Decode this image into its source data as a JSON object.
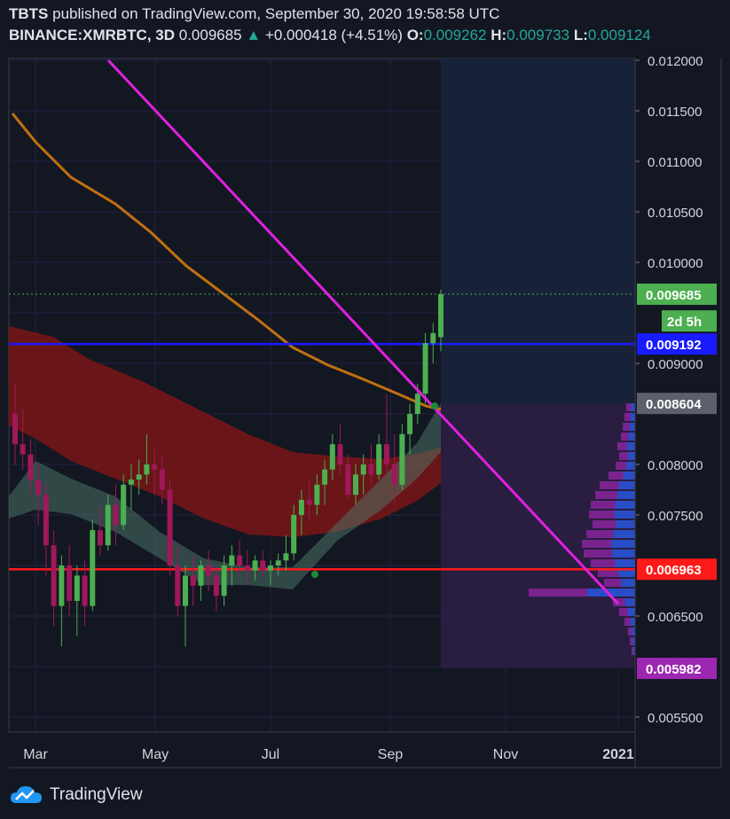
{
  "header": {
    "author": "TBTS",
    "published_text": "published on TradingView.com, September 30, 2020 19:58:58 UTC",
    "symbol": "BINANCE:XMRBTC, 3D",
    "last": "0.009685",
    "change_arrow": "▲",
    "change": "+0.000418 (+4.51%)",
    "o_label": "O:",
    "o_value": "0.009262",
    "h_label": "H:",
    "h_value": "0.009733",
    "l_label": "L:",
    "l_value": "0.009124"
  },
  "footer": {
    "brand": "TradingView",
    "logo_icon": "tradingview-cloud-icon"
  },
  "colors": {
    "background": "#131722",
    "grid": "#2a1f45",
    "up": "#4caf50",
    "down": "#a0185a",
    "trendline": "#e020e0",
    "support": "#ff1a1a",
    "resistance": "#1a1aff",
    "ma": "#c07010"
  },
  "chart_data": {
    "type": "candlestick",
    "x_ticks": [
      "Mar",
      "May",
      "Jul",
      "Sep",
      "Nov",
      "2021"
    ],
    "y_ticks": [
      "0.012000",
      "0.011500",
      "0.011000",
      "0.010500",
      "0.010000",
      "0.009000",
      "0.008000",
      "0.007500",
      "0.006500",
      "0.005500"
    ],
    "ylim": [
      0.0055,
      0.012
    ],
    "price_labels": [
      {
        "value": "0.009685",
        "price": 0.009685,
        "color": "#4caf50"
      },
      {
        "value": "2d 5h",
        "price": 0.00942,
        "color": "#4caf50"
      },
      {
        "value": "0.009192",
        "price": 0.009192,
        "color": "#1a1aff"
      },
      {
        "value": "0.008604",
        "price": 0.008604,
        "color": "#5d606b"
      },
      {
        "value": "0.006963",
        "price": 0.006963,
        "color": "#ff1a1a"
      },
      {
        "value": "0.005982",
        "price": 0.005982,
        "color": "#9c27b0"
      }
    ],
    "horizontal_lines": [
      {
        "name": "resistance",
        "price": 0.009192,
        "color": "#1a1aff"
      },
      {
        "name": "support",
        "price": 0.006963,
        "color": "#ff1a1a"
      }
    ],
    "trendline": {
      "start": [
        0,
        0.012
      ],
      "end": [
        60,
        0.00662
      ]
    },
    "candles": [
      [
        0.0085,
        0.0088,
        0.008,
        0.0082
      ],
      [
        0.0082,
        0.00855,
        0.00795,
        0.0081
      ],
      [
        0.0081,
        0.00825,
        0.0077,
        0.00785
      ],
      [
        0.00785,
        0.008,
        0.0074,
        0.0077
      ],
      [
        0.0077,
        0.0078,
        0.0069,
        0.0072
      ],
      [
        0.0072,
        0.00735,
        0.0064,
        0.0066
      ],
      [
        0.0066,
        0.0071,
        0.0062,
        0.007
      ],
      [
        0.007,
        0.0072,
        0.0065,
        0.00665
      ],
      [
        0.00665,
        0.007,
        0.0063,
        0.0069
      ],
      [
        0.0069,
        0.00705,
        0.0064,
        0.0066
      ],
      [
        0.0066,
        0.00745,
        0.00655,
        0.00735
      ],
      [
        0.00735,
        0.0076,
        0.0071,
        0.0072
      ],
      [
        0.0072,
        0.0077,
        0.00715,
        0.0076
      ],
      [
        0.0076,
        0.0078,
        0.0072,
        0.0074
      ],
      [
        0.0074,
        0.0079,
        0.00735,
        0.0078
      ],
      [
        0.0078,
        0.008,
        0.00755,
        0.00785
      ],
      [
        0.00785,
        0.00805,
        0.0077,
        0.0079
      ],
      [
        0.0079,
        0.0083,
        0.0078,
        0.008
      ],
      [
        0.008,
        0.00815,
        0.0077,
        0.00795
      ],
      [
        0.00795,
        0.0081,
        0.0076,
        0.00775
      ],
      [
        0.00775,
        0.00785,
        0.0069,
        0.007
      ],
      [
        0.007,
        0.0072,
        0.0065,
        0.0066
      ],
      [
        0.0066,
        0.007,
        0.0062,
        0.0069
      ],
      [
        0.0069,
        0.0071,
        0.0066,
        0.0068
      ],
      [
        0.0068,
        0.00705,
        0.00665,
        0.007
      ],
      [
        0.007,
        0.00715,
        0.00675,
        0.0069
      ],
      [
        0.0069,
        0.007,
        0.00655,
        0.0067
      ],
      [
        0.0067,
        0.0071,
        0.0066,
        0.007
      ],
      [
        0.007,
        0.0072,
        0.0068,
        0.0071
      ],
      [
        0.0071,
        0.00725,
        0.0069,
        0.007
      ],
      [
        0.007,
        0.00715,
        0.0068,
        0.00695
      ],
      [
        0.00695,
        0.0071,
        0.00685,
        0.00705
      ],
      [
        0.00705,
        0.00715,
        0.0069,
        0.00695
      ],
      [
        0.00695,
        0.00705,
        0.0068,
        0.007
      ],
      [
        0.007,
        0.00712,
        0.0069,
        0.00705
      ],
      [
        0.00705,
        0.0073,
        0.00695,
        0.00712
      ],
      [
        0.00712,
        0.0076,
        0.00705,
        0.0075
      ],
      [
        0.0075,
        0.00775,
        0.0073,
        0.00765
      ],
      [
        0.00765,
        0.00785,
        0.00745,
        0.0076
      ],
      [
        0.0076,
        0.0079,
        0.0075,
        0.0078
      ],
      [
        0.0078,
        0.00805,
        0.0076,
        0.00795
      ],
      [
        0.00795,
        0.0083,
        0.00785,
        0.0082
      ],
      [
        0.0082,
        0.0084,
        0.0079,
        0.008
      ],
      [
        0.008,
        0.0081,
        0.00765,
        0.0077
      ],
      [
        0.0077,
        0.008,
        0.0076,
        0.0079
      ],
      [
        0.0079,
        0.0081,
        0.0077,
        0.008
      ],
      [
        0.008,
        0.0082,
        0.0078,
        0.0079
      ],
      [
        0.0079,
        0.0083,
        0.00785,
        0.0082
      ],
      [
        0.0082,
        0.0087,
        0.0079,
        0.008
      ],
      [
        0.008,
        0.0083,
        0.0076,
        0.0078
      ],
      [
        0.0078,
        0.0084,
        0.00775,
        0.0083
      ],
      [
        0.0083,
        0.0086,
        0.0081,
        0.0085
      ],
      [
        0.0085,
        0.0088,
        0.0084,
        0.0087
      ],
      [
        0.0087,
        0.0093,
        0.0086,
        0.0092
      ],
      [
        0.0092,
        0.0094,
        0.009,
        0.0093
      ],
      [
        0.00926,
        0.00973,
        0.00912,
        0.009685
      ]
    ],
    "volume_profile_rows": [
      10,
      12,
      14,
      16,
      20,
      18,
      22,
      30,
      40,
      45,
      50,
      52,
      48,
      55,
      60,
      58,
      50,
      42,
      35,
      120,
      25,
      18,
      12,
      8,
      6,
      4
    ]
  }
}
